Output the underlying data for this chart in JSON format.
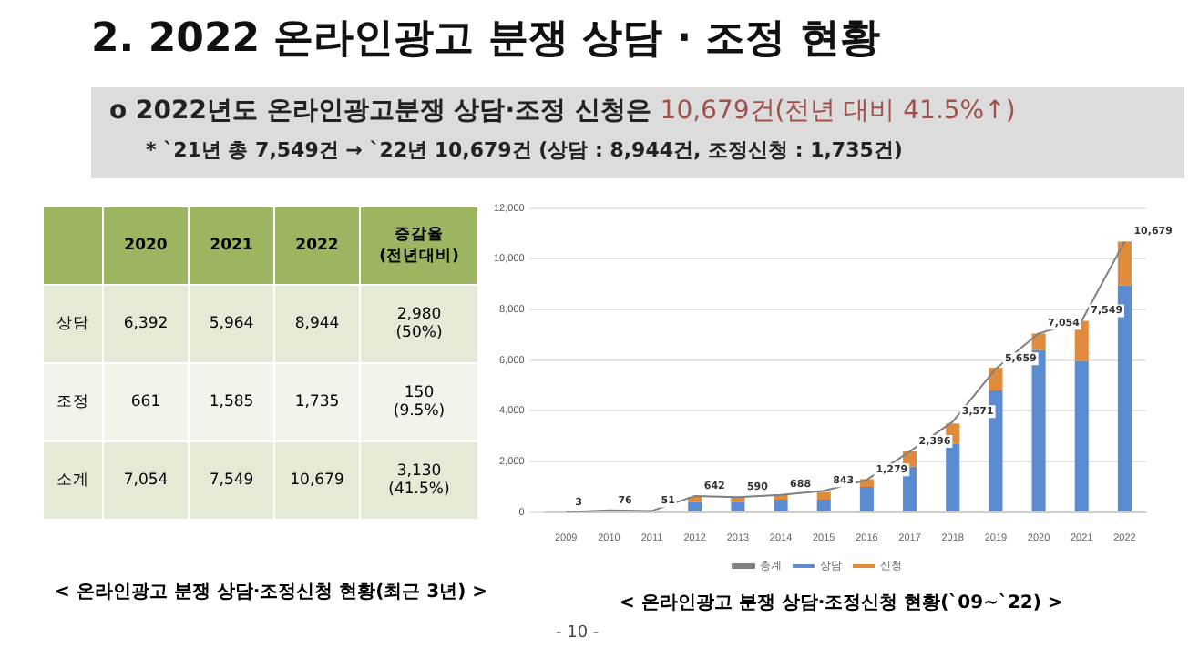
{
  "chart_data": [
    {
      "type": "other",
      "title": "2. 2022 온라인광고 분쟁 상담 · 조정 현황",
      "subtitle": "o 2022년도 온라인광고분쟁 상담·조정 신청은",
      "annotations": [
        "10,679건(전년 대비 41.5%↑)",
        "* `21년 총 7,549건 → `22년 10,679건 (상담 : 8,944건, 조정신청 : 1,735건)",
        "2020",
        "2021",
        "2022",
        "증감율\n(전년대비)",
        "상담",
        "6,392",
        "5,964",
        "8,944",
        "2,980\n(50%)",
        "조정",
        "661",
        "1,585",
        "1,735",
        "150\n(9.5%)",
        "소계",
        "7,054",
        "7,549",
        "10,679",
        "3,130\n(41.5%)",
        "< 온라인광고 분쟁 상담·조정신청 현황(최근 3년) >",
        "- 10 -"
      ]
    },
    {
      "type": "bar",
      "stacked": true,
      "legend": "bottom",
      "grid": "y",
      "categories": [
        "2009",
        "2010",
        "2011",
        "2012",
        "2013",
        "2014",
        "2015",
        "2016",
        "2017",
        "2018",
        "2019",
        "2020",
        "2021",
        "2022"
      ],
      "ylim": [
        0,
        12000
      ],
      "yticks": [
        0,
        {
          "value": 2000,
          "label": "2,000"
        },
        {
          "value": 4000,
          "label": "4,000"
        },
        {
          "value": 6000,
          "label": "6,000"
        },
        {
          "value": 8000,
          "label": "8,000"
        },
        {
          "value": 10000,
          "label": "10,000"
        },
        {
          "value": 12000,
          "label": "12,000"
        }
      ],
      "series": [
        {
          "name": "상담",
          "color": "#5b8bd0",
          "values": [
            0,
            null,
            0,
            400,
            400,
            500,
            500,
            1000,
            1800,
            2700,
            4800,
            6392,
            5964,
            8944
          ]
        },
        {
          "name": "신청",
          "color": "#e08b3c",
          "values": [
            0,
            0,
            0,
            200,
            200,
            200,
            300,
            300,
            600,
            800,
            900,
            661,
            1585,
            1735
          ]
        },
        {
          "name": "총계",
          "type": "line",
          "color": "#7f7f7f",
          "values": [
            3,
            76,
            51,
            642,
            590,
            688,
            843,
            1279,
            2396,
            3571,
            5659,
            7054,
            7549,
            10679
          ],
          "value_labels": [
            "3",
            "76",
            "51",
            "642",
            "590",
            "688",
            "843",
            "1,279",
            "2,396",
            "3,571",
            "5,659",
            "7,054",
            "7,549",
            "10,679"
          ]
        }
      ],
      "annotations": [
        "< 온라인광고 분쟁 상담·조정신청 현황(`09~`22) >"
      ]
    }
  ]
}
